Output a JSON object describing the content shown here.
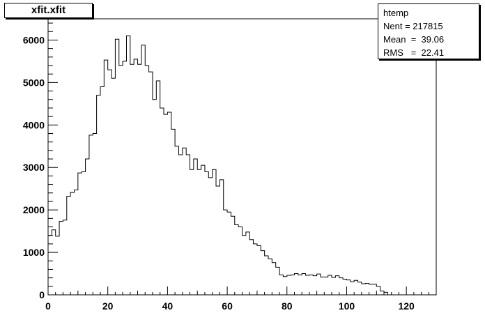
{
  "title": "xfit.xfit",
  "stats": {
    "name": "htemp",
    "lines": [
      "Nent = 217815",
      "Mean  =  39.06",
      "RMS   =  22.41"
    ]
  },
  "chart_data": {
    "type": "histogram",
    "title": "xfit.xfit",
    "xlabel": "",
    "ylabel": "",
    "xlim": [
      0,
      130
    ],
    "ylim": [
      0,
      6500
    ],
    "bin_width": 1.25,
    "x_start": 0,
    "x_ticks": [
      0,
      20,
      40,
      60,
      80,
      100,
      120
    ],
    "y_ticks": [
      0,
      1000,
      2000,
      3000,
      4000,
      5000,
      6000
    ],
    "grid": false,
    "legend": "top-right",
    "values": [
      1400,
      1530,
      1380,
      1730,
      1760,
      2320,
      2410,
      2470,
      2870,
      2900,
      3200,
      3760,
      3800,
      4700,
      4900,
      5530,
      5300,
      5100,
      6020,
      5400,
      5500,
      6100,
      5430,
      5550,
      5430,
      5880,
      5400,
      5250,
      4600,
      5040,
      4400,
      4250,
      4300,
      3900,
      3500,
      3300,
      3460,
      3300,
      2950,
      3200,
      2950,
      3050,
      2900,
      2760,
      2950,
      2560,
      2710,
      2000,
      1950,
      1850,
      1650,
      1600,
      1400,
      1480,
      1300,
      1200,
      1160,
      1040,
      920,
      850,
      760,
      650,
      470,
      430,
      460,
      470,
      500,
      470,
      500,
      460,
      470,
      450,
      490,
      420,
      420,
      460,
      410,
      450,
      400,
      370,
      350,
      310,
      340,
      300,
      260,
      270,
      250,
      250,
      200,
      90,
      60
    ]
  }
}
